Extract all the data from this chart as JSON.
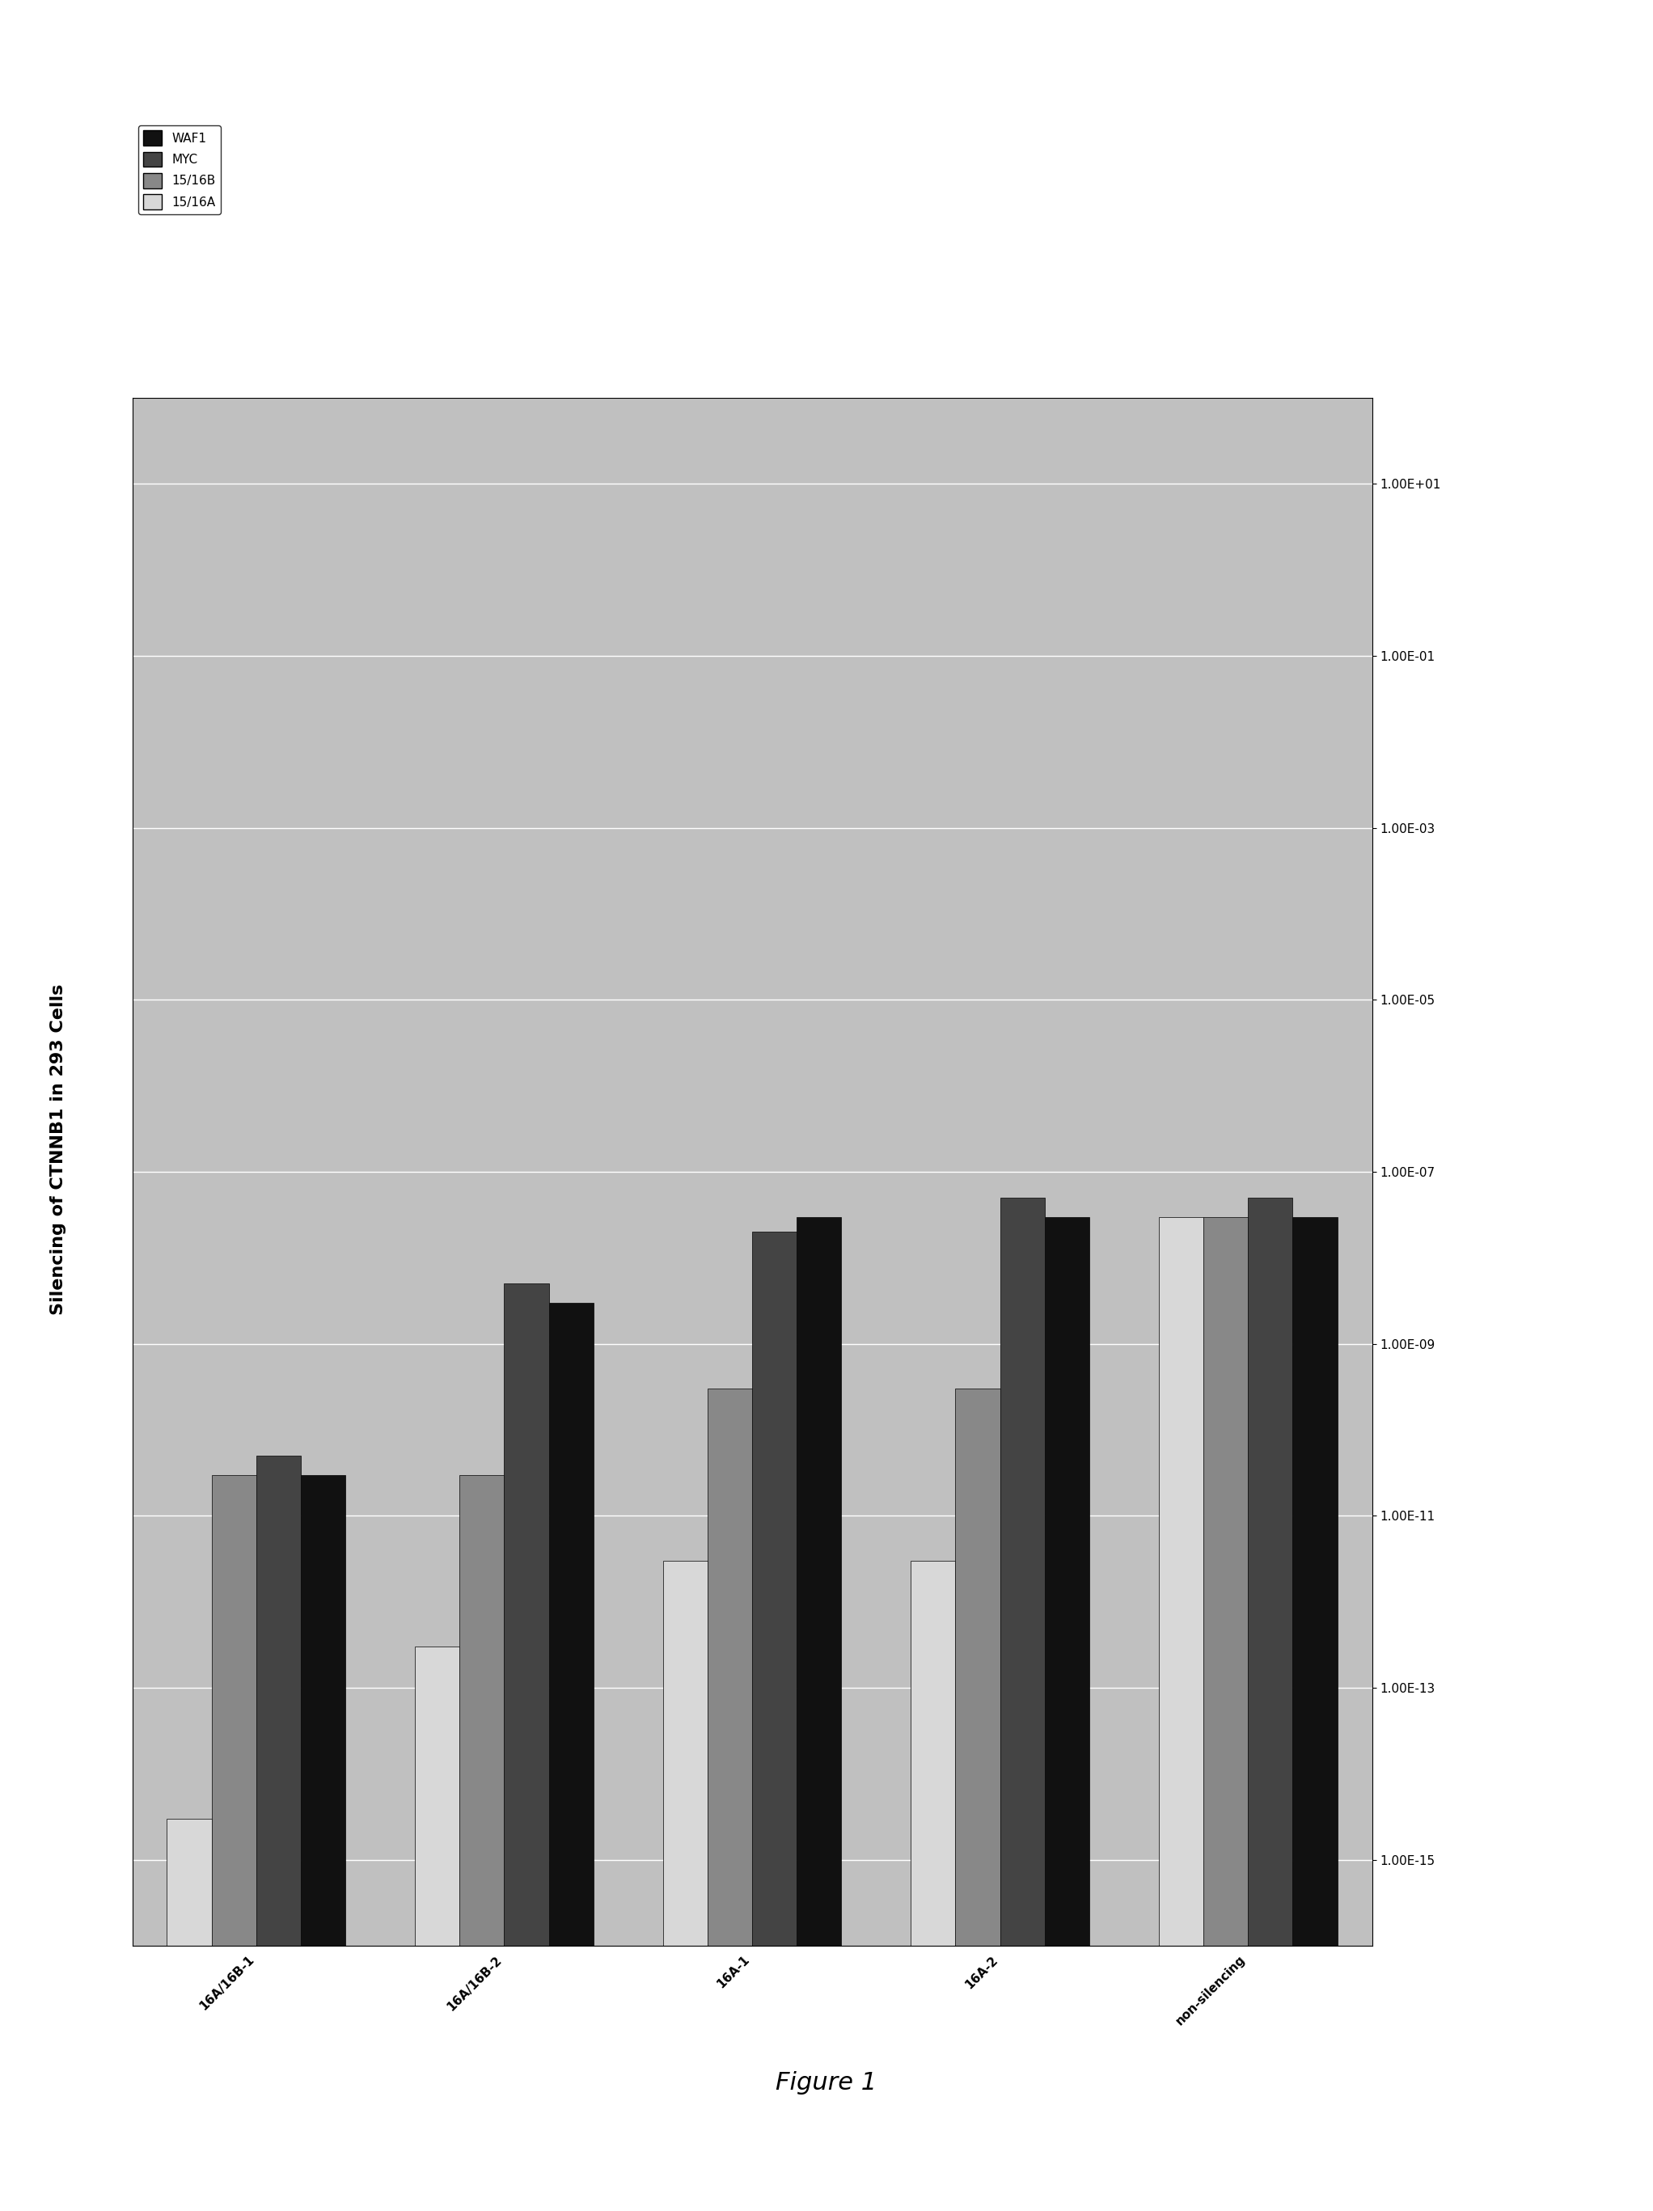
{
  "title": "Silencing of CTNNB1 in 293 Cells",
  "figure_label": "Figure 1",
  "categories": [
    "non-silencing",
    "16A-2",
    "16A-1",
    "16A/16B-2",
    "16A/16B-1"
  ],
  "series_names": [
    "WAF1",
    "MYC",
    "15/16B",
    "15/16A"
  ],
  "bar_colors": [
    "#111111",
    "#444444",
    "#888888",
    "#cccccc"
  ],
  "bar_hatches": [
    null,
    null,
    null,
    null
  ],
  "values": {
    "WAF1": [
      3e-08,
      3e-08,
      3e-08,
      3e-09,
      3e-11
    ],
    "MYC": [
      5e-08,
      5e-08,
      2e-08,
      5e-09,
      5e-11
    ],
    "15/16B": [
      3e-08,
      3e-10,
      3e-10,
      3e-11,
      3e-11
    ],
    "15/16A": [
      3e-08,
      3e-12,
      3e-12,
      3e-13,
      3e-15
    ]
  },
  "ylim_min": 1e-16,
  "ylim_max": 100.0,
  "yticks": [
    10.0,
    0.1,
    0.001,
    1e-05,
    1e-07,
    1e-09,
    1e-11,
    1e-13,
    1e-15
  ],
  "ytick_labels": [
    "1.00E+01",
    "1.00E-01",
    "1.00E-03",
    "1.00E-05",
    "1.00E-07",
    "1.00E-09",
    "1.00E-11",
    "1.00E-13",
    "1.00E-15"
  ],
  "plot_bg_color": "#c0c0c0",
  "grid_color": "#ffffff",
  "title_fontsize": 16,
  "legend_fontsize": 11,
  "tick_fontsize": 11,
  "cat_fontsize": 11
}
